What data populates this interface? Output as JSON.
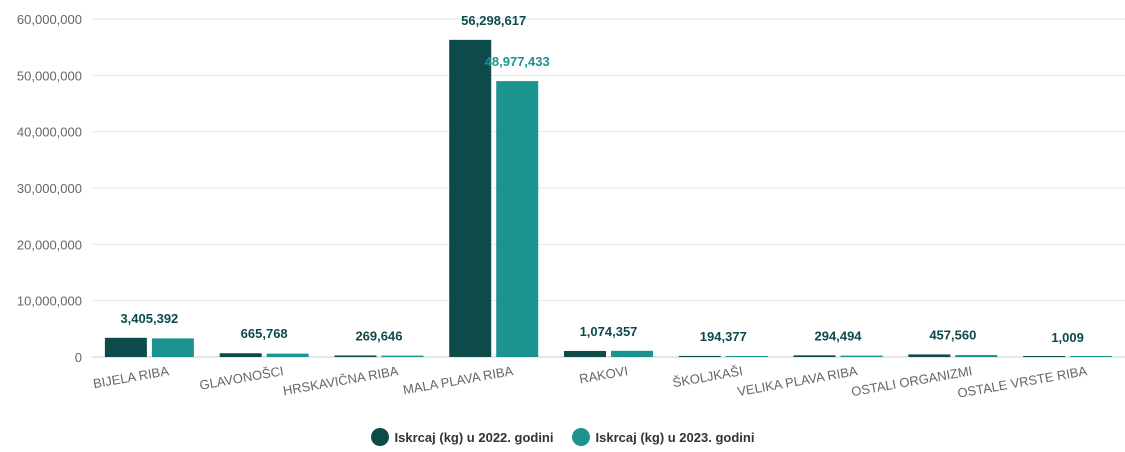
{
  "chart_data": {
    "type": "bar",
    "categories": [
      "BIJELA RIBA",
      "GLAVONOŠCI",
      "HRSKAVIČNA RIBA",
      "MALA PLAVA RIBA",
      "RAKOVI",
      "ŠKOLJKAŠI",
      "VELIKA PLAVA RIBA",
      "OSTALI ORGANIZMI",
      "OSTALE VRSTE RIBA"
    ],
    "series": [
      {
        "name": "Iskrcaj (kg) u 2022. godini",
        "color": "#0d4a4a",
        "values": [
          3405392,
          665768,
          269646,
          56298617,
          1074357,
          194377,
          294494,
          457560,
          1009
        ],
        "labels": [
          "3,405,392",
          "665,768",
          "269,646",
          "56,298,617",
          "1,074,357",
          "194,377",
          "294,494",
          "457,560",
          "1,009"
        ]
      },
      {
        "name": "Iskrcaj (kg) u 2023. godini",
        "color": "#1b9490",
        "values": [
          3300000,
          600000,
          250000,
          48977433,
          1100000,
          80000,
          250000,
          350000,
          5000
        ]
      }
    ],
    "value_labels_2023": [
      "48,977,433"
    ],
    "ylim": [
      0,
      60000000
    ],
    "yticks": [
      {
        "value": 0,
        "label": "0"
      },
      {
        "value": 10000000,
        "label": "10,000,000"
      },
      {
        "value": 20000000,
        "label": "20,000,000"
      },
      {
        "value": 30000000,
        "label": "30,000,000"
      },
      {
        "value": 40000000,
        "label": "40,000,000"
      },
      {
        "value": 50000000,
        "label": "50,000,000"
      },
      {
        "value": 60000000,
        "label": "60,000,000"
      }
    ],
    "grid": true,
    "legend_position": "bottom",
    "title": "",
    "xlabel": "",
    "ylabel": ""
  }
}
